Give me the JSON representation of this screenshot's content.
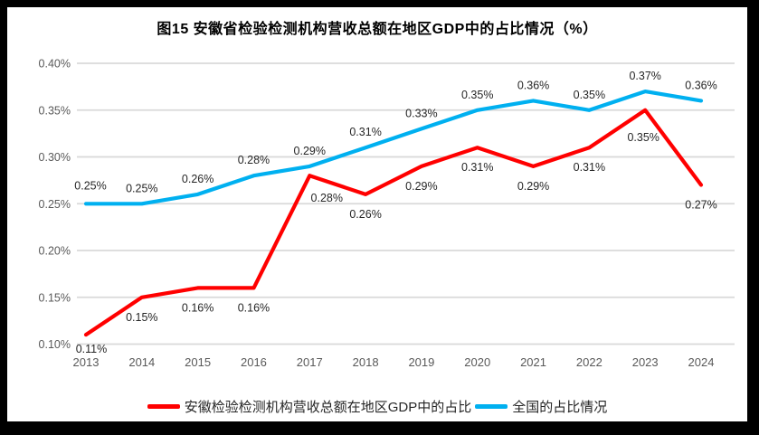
{
  "title": "图15 安徽省检验检测机构营收总额在地区GDP中的占比情况（%）",
  "chart_data": {
    "type": "line",
    "title": "图15 安徽省检验检测机构营收总额在地区GDP中的占比情况（%）",
    "categories": [
      "2013",
      "2014",
      "2015",
      "2016",
      "2017",
      "2018",
      "2019",
      "2020",
      "2021",
      "2022",
      "2023",
      "2024"
    ],
    "series": [
      {
        "name": "安徽检验检测机构营收总额在地区GDP中的占比",
        "color": "#FF0000",
        "values": [
          0.11,
          0.15,
          0.16,
          0.16,
          0.28,
          0.26,
          0.29,
          0.31,
          0.29,
          0.31,
          0.35,
          0.27
        ],
        "labels": [
          "0.11%",
          "0.15%",
          "0.16%",
          "0.16%",
          "0.28%",
          "0.26%",
          "0.29%",
          "0.31%",
          "0.29%",
          "0.31%",
          "0.35%",
          "0.27%"
        ],
        "label_position": "below"
      },
      {
        "name": "全国的占比情况",
        "color": "#00B0F0",
        "values": [
          0.25,
          0.25,
          0.26,
          0.28,
          0.29,
          0.31,
          0.33,
          0.35,
          0.36,
          0.35,
          0.37,
          0.36
        ],
        "labels": [
          "0.25%",
          "0.25%",
          "0.26%",
          "0.28%",
          "0.29%",
          "0.31%",
          "0.33%",
          "0.35%",
          "0.36%",
          "0.35%",
          "0.37%",
          "0.36%"
        ],
        "label_position": "above"
      }
    ],
    "xlabel": "",
    "ylabel": "",
    "ylim": [
      0.1,
      0.4
    ],
    "ytick_step": 0.05,
    "ytick_labels": [
      "0.10%",
      "0.15%",
      "0.20%",
      "0.25%",
      "0.30%",
      "0.35%",
      "0.40%"
    ],
    "grid": true,
    "legend_position": "bottom",
    "colors": {
      "gridline": "#D9D9D9",
      "tick_label": "#595959",
      "data_label": "#262626",
      "frame_border": "#000000"
    }
  }
}
